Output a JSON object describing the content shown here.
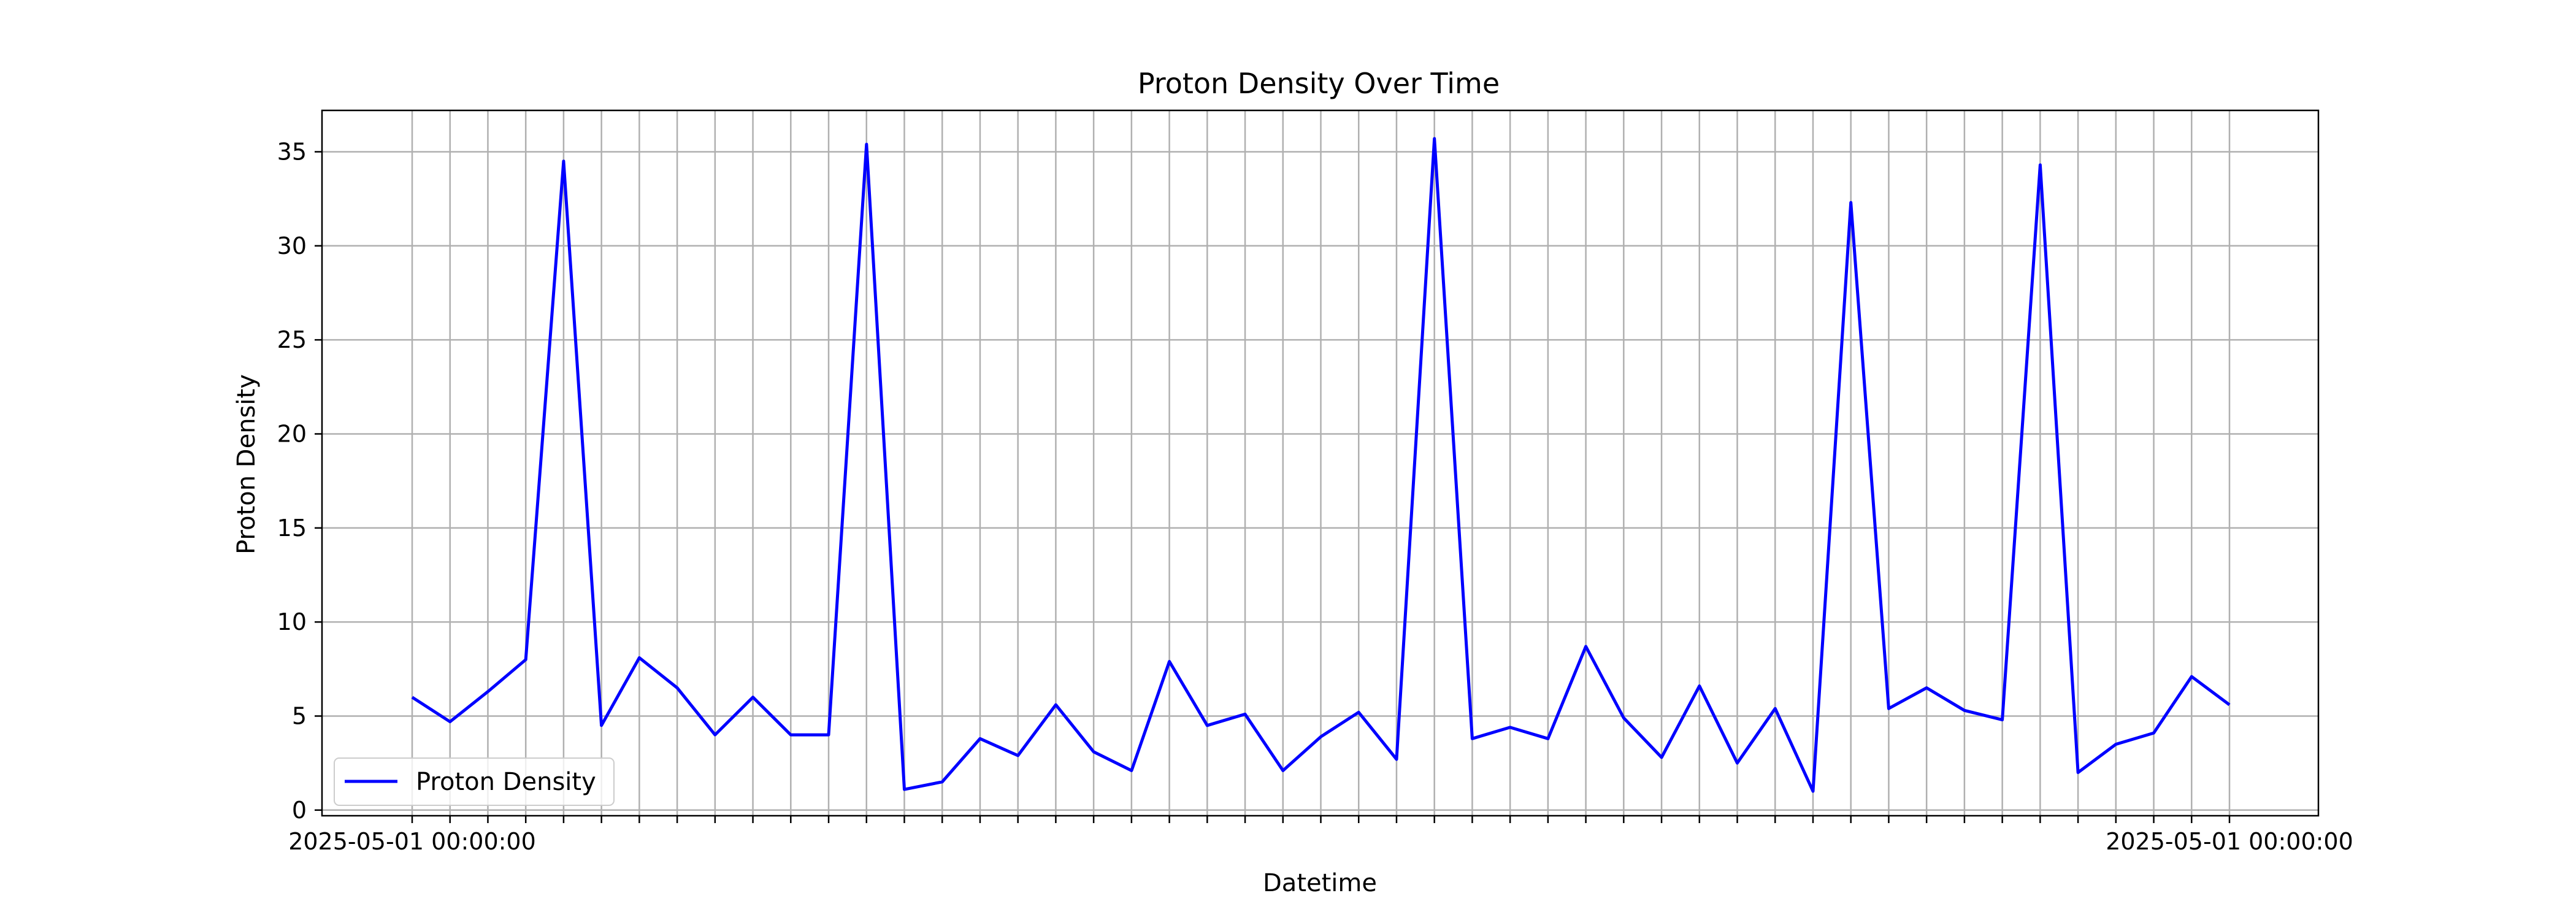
{
  "chart_data": {
    "type": "line",
    "title": "Proton Density Over Time",
    "xlabel": "Datetime",
    "ylabel": "Proton Density",
    "ylim": [
      0,
      37
    ],
    "yticks": [
      0,
      5,
      10,
      15,
      20,
      25,
      30,
      35
    ],
    "grid": true,
    "legend_position": "lower-left",
    "x_tick_label_first": "2025-05-01 00:00:00",
    "x_tick_label_last": "2025-05-01 00:00:00",
    "series": [
      {
        "name": "Proton Density",
        "color": "#0000ff",
        "values": [
          6.0,
          4.7,
          6.3,
          8.0,
          34.5,
          4.5,
          8.1,
          6.5,
          4.0,
          6.0,
          4.0,
          4.0,
          35.4,
          1.1,
          1.5,
          3.8,
          2.9,
          5.6,
          3.1,
          2.1,
          7.9,
          4.5,
          5.1,
          2.1,
          3.9,
          5.2,
          2.7,
          35.7,
          3.8,
          4.4,
          3.8,
          8.7,
          4.9,
          2.8,
          6.6,
          2.5,
          5.4,
          1.0,
          32.3,
          5.4,
          6.5,
          5.3,
          4.8,
          34.3,
          2.0,
          3.5,
          4.1,
          7.1,
          5.6
        ]
      }
    ]
  }
}
